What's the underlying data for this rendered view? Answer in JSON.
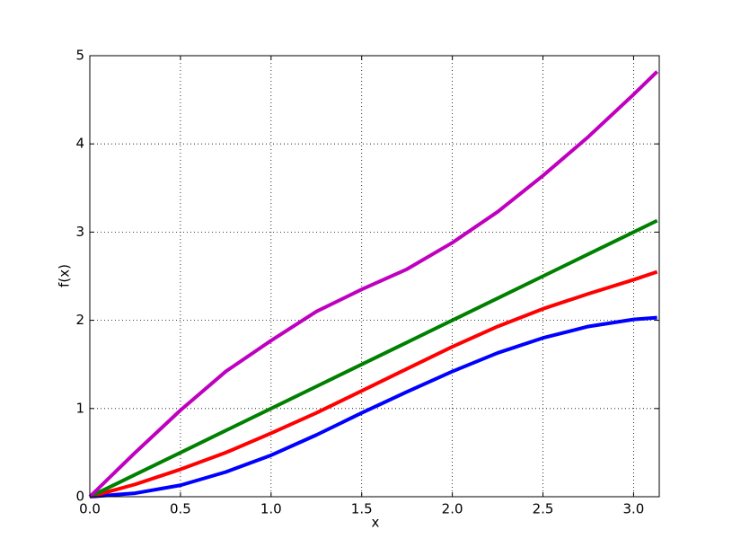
{
  "chart_data": {
    "type": "line",
    "x_label": "x",
    "y_label": "f(x)",
    "x": [
      0,
      0.25,
      0.5,
      0.75,
      1.0,
      1.25,
      1.5,
      1.75,
      2.0,
      2.25,
      2.5,
      2.75,
      3.0,
      3.13
    ],
    "series": [
      {
        "color": "#0000ff",
        "values": [
          0,
          0.04,
          0.13,
          0.28,
          0.47,
          0.7,
          0.95,
          1.19,
          1.42,
          1.63,
          1.8,
          1.93,
          2.01,
          2.03
        ]
      },
      {
        "color": "#ff0000",
        "values": [
          0,
          0.14,
          0.31,
          0.5,
          0.72,
          0.95,
          1.2,
          1.45,
          1.7,
          1.93,
          2.13,
          2.3,
          2.46,
          2.55
        ]
      },
      {
        "color": "#008000",
        "values": [
          0,
          0.25,
          0.5,
          0.75,
          1.0,
          1.25,
          1.5,
          1.75,
          2.0,
          2.25,
          2.5,
          2.75,
          3.0,
          3.13
        ]
      },
      {
        "color": "#bf00bf",
        "values": [
          0,
          0.5,
          0.98,
          1.42,
          1.77,
          2.1,
          2.35,
          2.58,
          2.88,
          3.23,
          3.64,
          4.08,
          4.56,
          4.82
        ]
      }
    ],
    "xlim": [
      0,
      3.1416
    ],
    "ylim": [
      0,
      5
    ],
    "xticks": [
      {
        "value": 0,
        "label": "0.0"
      },
      {
        "value": 0.5,
        "label": "0.5"
      },
      {
        "value": 1,
        "label": "1.0"
      },
      {
        "value": 1.5,
        "label": "1.5"
      },
      {
        "value": 2,
        "label": "2.0"
      },
      {
        "value": 2.5,
        "label": "2.5"
      },
      {
        "value": 3,
        "label": "3.0"
      }
    ],
    "yticks": [
      0,
      1,
      2,
      3,
      4,
      5
    ],
    "grid": true
  }
}
